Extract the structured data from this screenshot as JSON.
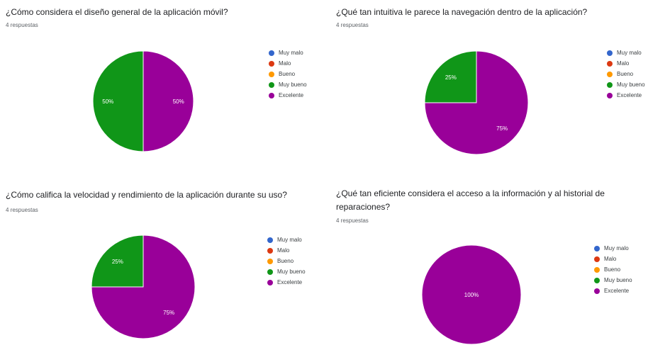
{
  "legend_labels": [
    "Muy malo",
    "Malo",
    "Bueno",
    "Muy bueno",
    "Excelente"
  ],
  "colors": {
    "Muy malo": "#3366cc",
    "Malo": "#dc3912",
    "Bueno": "#ff9900",
    "Muy bueno": "#109618",
    "Excelente": "#990099"
  },
  "chart_data": [
    {
      "type": "pie",
      "title": "¿Cómo considera el diseño general de la aplicación móvil?",
      "subtitle": "4 respuestas",
      "legend_position": "right",
      "categories": [
        "Muy malo",
        "Malo",
        "Bueno",
        "Muy bueno",
        "Excelente"
      ],
      "values": [
        0,
        0,
        0,
        50,
        50
      ]
    },
    {
      "type": "pie",
      "title": "¿Qué tan intuitiva le parece la navegación dentro de la aplicación?",
      "subtitle": "4 respuestas",
      "legend_position": "right",
      "categories": [
        "Muy malo",
        "Malo",
        "Bueno",
        "Muy bueno",
        "Excelente"
      ],
      "values": [
        0,
        0,
        0,
        25,
        75
      ]
    },
    {
      "type": "pie",
      "title": "¿Cómo califica la velocidad y rendimiento de la aplicación durante su uso?",
      "subtitle": "4 respuestas",
      "legend_position": "right",
      "categories": [
        "Muy malo",
        "Malo",
        "Bueno",
        "Muy bueno",
        "Excelente"
      ],
      "values": [
        0,
        0,
        0,
        25,
        75
      ]
    },
    {
      "type": "pie",
      "title": "¿Qué tan eficiente considera el acceso a la información y al historial de reparaciones?",
      "subtitle": "4 respuestas",
      "legend_position": "right",
      "categories": [
        "Muy malo",
        "Malo",
        "Bueno",
        "Muy bueno",
        "Excelente"
      ],
      "values": [
        0,
        0,
        0,
        0,
        100
      ]
    }
  ]
}
